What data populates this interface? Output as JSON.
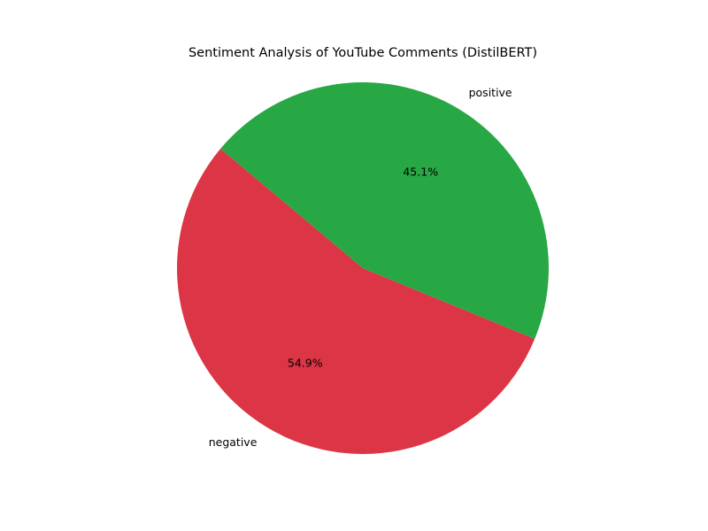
{
  "chart_data": {
    "type": "pie",
    "title": "Sentiment Analysis of YouTube Comments (DistilBERT)",
    "slices": [
      {
        "label": "negative",
        "value": 54.9,
        "display": "54.9%",
        "color": "#dc3545"
      },
      {
        "label": "positive",
        "value": 45.1,
        "display": "45.1%",
        "color": "#28a745"
      }
    ],
    "start_angle_deg": 140,
    "direction": "counterclockwise"
  }
}
